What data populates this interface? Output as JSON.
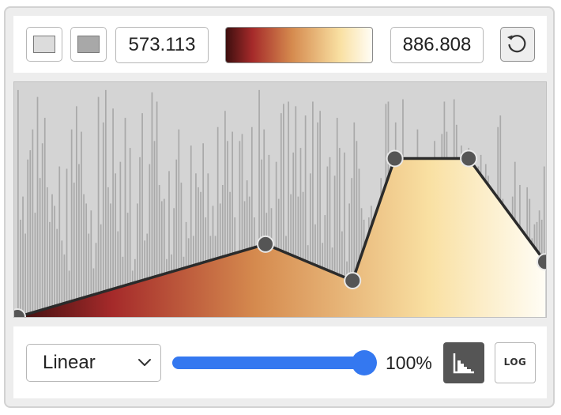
{
  "header": {
    "min_value": "573.113",
    "max_value": "886.808",
    "swatches": [
      {
        "name": "low-color-swatch",
        "color": "#dcdcdc"
      },
      {
        "name": "high-color-swatch",
        "color": "#a8a8a8"
      }
    ],
    "reset_icon": "reset-icon"
  },
  "colormap": {
    "stops": [
      {
        "offset": 0.0,
        "color": "#3e0f0f"
      },
      {
        "offset": 0.18,
        "color": "#a52a2a"
      },
      {
        "offset": 0.45,
        "color": "#d58a4e"
      },
      {
        "offset": 0.78,
        "color": "#f9e0a2"
      },
      {
        "offset": 1.0,
        "color": "#fffdf5"
      }
    ]
  },
  "transfer_function": {
    "points": [
      {
        "x": 0.0,
        "y": 0.0
      },
      {
        "x": 0.47,
        "y": 0.31
      },
      {
        "x": 0.635,
        "y": 0.155
      },
      {
        "x": 0.715,
        "y": 0.675
      },
      {
        "x": 0.855,
        "y": 0.675
      },
      {
        "x": 1.0,
        "y": 0.235
      }
    ],
    "histogram": [
      0.98,
      0.42,
      0.52,
      0.36,
      0.68,
      0.72,
      0.81,
      0.45,
      0.95,
      0.6,
      0.75,
      0.86,
      0.56,
      0.41,
      0.53,
      0.48,
      0.38,
      0.65,
      0.33,
      0.27,
      0.64,
      0.2,
      0.81,
      0.58,
      0.91,
      0.66,
      0.8,
      0.53,
      0.49,
      0.36,
      0.46,
      0.21,
      0.32,
      0.95,
      0.4,
      0.84,
      0.98,
      0.56,
      0.49,
      0.9,
      0.62,
      0.37,
      0.67,
      0.26,
      0.86,
      0.45,
      0.73,
      0.2,
      0.25,
      0.49,
      0.69,
      0.88,
      0.33,
      0.36,
      0.66,
      0.97,
      0.76,
      0.93,
      0.57,
      0.5,
      0.51,
      0.25,
      0.63,
      0.27,
      0.47,
      0.68,
      0.81,
      0.58,
      0.26,
      0.41,
      0.34,
      0.74,
      0.35,
      0.62,
      0.56,
      0.54,
      0.75,
      0.43,
      0.62,
      0.35,
      0.48,
      0.35,
      0.82,
      0.49,
      0.57,
      0.89,
      0.76,
      0.54,
      0.8,
      0.43,
      0.22,
      0.76,
      0.79,
      0.5,
      0.59,
      0.52,
      0.82,
      0.43,
      0.3,
      0.98,
      0.68,
      0.81,
      0.45,
      0.7,
      0.47,
      0.31,
      0.67,
      0.51,
      0.88,
      0.92,
      0.35,
      0.93,
      0.53,
      0.71,
      0.91,
      0.52,
      0.73,
      0.54,
      0.87,
      0.31,
      0.62,
      0.93,
      0.4,
      0.84,
      0.89,
      0.32,
      0.44,
      0.65,
      0.69,
      0.3,
      0.61,
      0.86,
      0.73,
      0.37,
      0.71,
      0.24,
      0.49,
      0.6,
      0.84,
      0.76,
      0.64,
      0.47,
      0.42,
      0.33,
      0.43,
      0.48,
      0.37,
      0.24,
      0.25,
      0.6,
      0.55,
      0.92,
      0.93,
      0.42,
      0.51,
      0.84,
      0.68,
      0.28,
      0.94,
      0.27,
      0.3,
      0.59,
      0.43,
      0.65,
      0.81,
      0.32,
      0.39,
      0.62,
      0.44,
      0.36,
      0.3,
      0.76,
      0.31,
      0.67,
      0.79,
      0.93,
      0.8,
      0.57,
      0.48,
      0.94,
      0.83,
      0.28,
      0.74,
      0.32,
      0.66,
      0.73,
      0.45,
      0.27,
      0.42,
      0.65,
      0.7,
      0.54,
      0.66,
      0.61,
      0.53,
      0.31,
      0.37,
      0.82,
      0.87,
      0.51,
      0.47,
      0.42,
      0.26,
      0.52,
      0.67,
      0.4,
      0.57,
      0.33,
      0.37,
      0.56,
      0.51,
      0.34,
      0.4,
      0.41,
      0.46,
      0.42,
      0.65
    ]
  },
  "footer": {
    "scale_select": "Linear",
    "opacity_percent": 100,
    "opacity_label": "100%",
    "histogram_toggle_icon": "histogram-icon",
    "log_label": "LOG"
  }
}
